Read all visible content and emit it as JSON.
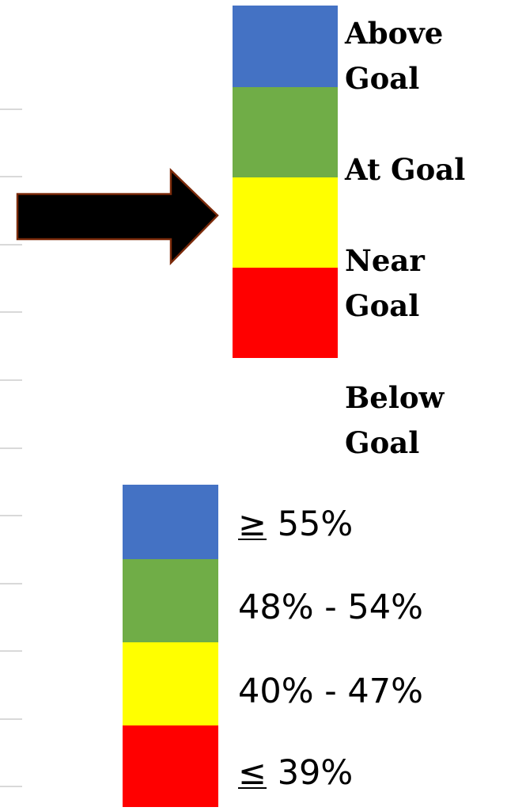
{
  "goal_scale": {
    "levels": [
      {
        "label_line1": "Above",
        "label_line2": "Goal",
        "color": "#4472c4"
      },
      {
        "label_line1": "At Goal",
        "label_line2": "",
        "color": "#70ad47"
      },
      {
        "label_line1": "Near",
        "label_line2": "Goal",
        "color": "#ffff00"
      },
      {
        "label_line1": "Below",
        "label_line2": "Goal",
        "color": "#ff0000"
      }
    ]
  },
  "percent_scale": {
    "levels": [
      {
        "symbol": "≥",
        "label": " 55%",
        "color": "#4472c4"
      },
      {
        "symbol": "",
        "label": "48% - 54%",
        "color": "#70ad47"
      },
      {
        "symbol": "",
        "label": "40% - 47%",
        "color": "#ffff00"
      },
      {
        "symbol": "≤",
        "label": " 39%",
        "color": "#ff0000"
      }
    ]
  },
  "arrow": {
    "color": "#000000",
    "outline": "#7b2a0a",
    "icon": "right-arrow-icon"
  }
}
